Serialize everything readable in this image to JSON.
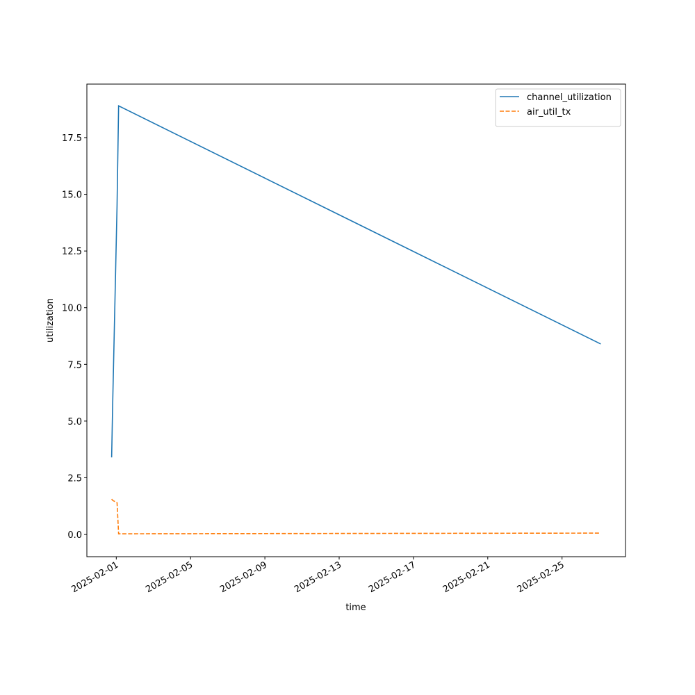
{
  "chart_data": {
    "type": "line",
    "x_label": "time",
    "y_label": "utilization",
    "x": [
      "2025-01-31T18:00",
      "2025-01-31T19:30",
      "2025-02-01T01:00",
      "2025-02-01T03:00",
      "2025-02-27T02:00"
    ],
    "series": [
      {
        "name": "channel_utilization",
        "color": "#1f77b4",
        "dash": "solid",
        "values": [
          3.4,
          6.0,
          14.5,
          18.9,
          8.4
        ]
      },
      {
        "name": "air_util_tx",
        "color": "#ff7f0e",
        "dash": "dashed",
        "values": [
          1.56,
          1.5,
          1.4,
          0.03,
          0.06
        ]
      }
    ],
    "xlim": [
      "2025-01-30T10:00",
      "2025-02-28T10:00"
    ],
    "xticks": [
      "2025-02-01",
      "2025-02-05",
      "2025-02-09",
      "2025-02-13",
      "2025-02-17",
      "2025-02-21",
      "2025-02-25"
    ],
    "ylim": [
      -0.98,
      19.86
    ],
    "yticks": [
      {
        "value": 0,
        "label": "0.0"
      },
      2.5,
      {
        "value": 5,
        "label": "5.0"
      },
      7.5,
      {
        "value": 10,
        "label": "10.0"
      },
      12.5,
      {
        "value": 15,
        "label": "15.0"
      },
      17.5
    ],
    "legend": "upper right",
    "grid": false
  }
}
